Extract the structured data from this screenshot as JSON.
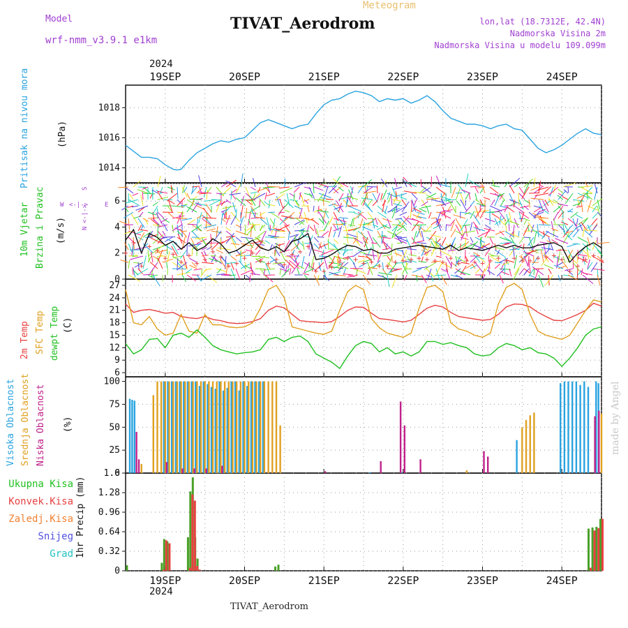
{
  "header": {
    "model_label": "Model",
    "model_name": "wrf-nmm_v3.9.1  e1km",
    "title": "TIVAT_Aerodrom",
    "subtitle": "Meteogram",
    "lonlat": "lon,lat (18.7312E, 42.4N)",
    "elevation": "Nadmorska Visina 2m",
    "model_elevation": "Nadmorska Visina u modelu 109.099m",
    "year": "2024",
    "footer_title": "TIVAT_Aerodrom",
    "credit": "made by Angel"
  },
  "panel_labels": {
    "pressure": [
      "Pritisak na nivou mora",
      "(hPa)"
    ],
    "wind": [
      "10m Vjetar",
      "Brzina i Pravac",
      "(m/s)"
    ],
    "compass": {
      "n": "N",
      "s": "S",
      "w": "W",
      "e": "E",
      "arrow_ns": "<-|->",
      "arrow_we": "<-|->"
    },
    "temp": [
      "2m Temp",
      "SFC Temp",
      "dewpt Temp",
      "(C)"
    ],
    "cloud": [
      "Visoka Oblacnost",
      "Srednja Oblacnost",
      "Niska Oblacnost",
      "(%)"
    ],
    "precip_legend": [
      "Ukupna  Kisa",
      "Konvek.Kisa",
      "Zaledj.Kisa",
      "Snijeg",
      "Grad"
    ],
    "precip_axis": "1hr Precip (mm)"
  },
  "colors": {
    "pressure": "#29a3e0",
    "temp2m": "#e84040",
    "sfc": "#e0a020",
    "dewpt": "#20c020",
    "cloud_high": "#29a3e0",
    "cloud_mid": "#e0a020",
    "cloud_low": "#c0208a",
    "total_rain": "#4aa028",
    "conv_rain": "#e84040",
    "frozen": "#f08030",
    "snow": "#5050e0",
    "hail": "#20c0c0",
    "purple_text": "#a040d0"
  },
  "chart_data": [
    {
      "type": "line",
      "title": "Pritisak na nivou mora",
      "ylabel": "(hPa)",
      "x_categories": [
        "19SEP",
        "20SEP",
        "21SEP",
        "22SEP",
        "23SEP",
        "24SEP"
      ],
      "ylim": [
        1013,
        1019.5
      ],
      "yticks": [
        1014,
        1016,
        1018
      ],
      "grid": true,
      "series": [
        {
          "x": [
            18.5,
            18.6,
            18.7,
            18.8,
            18.9,
            19.0,
            19.1,
            19.15,
            19.2,
            19.3,
            19.4,
            19.5,
            19.6,
            19.7,
            19.8,
            19.9,
            20.0,
            20.1,
            20.2,
            20.3,
            20.4,
            20.5,
            20.6,
            20.7,
            20.8,
            20.9,
            21.0,
            21.1,
            21.2,
            21.3,
            21.4,
            21.5,
            21.6,
            21.7,
            21.8,
            21.9,
            22.0,
            22.1,
            22.2,
            22.3,
            22.4,
            22.5,
            22.6,
            22.7,
            22.8,
            22.9,
            23.0,
            23.1,
            23.2,
            23.3,
            23.4,
            23.5,
            23.6,
            23.7,
            23.8,
            23.9,
            24.0,
            24.1,
            24.2,
            24.3,
            24.4,
            24.5
          ],
          "values": [
            1015.5,
            1015.1,
            1014.7,
            1014.7,
            1014.6,
            1014.2,
            1013.9,
            1013.85,
            1013.9,
            1014.5,
            1015.0,
            1015.3,
            1015.6,
            1015.8,
            1015.7,
            1015.9,
            1016.0,
            1016.5,
            1017.0,
            1017.2,
            1017.0,
            1016.8,
            1016.6,
            1016.8,
            1016.9,
            1017.6,
            1018.2,
            1018.5,
            1018.6,
            1018.9,
            1019.1,
            1019.0,
            1018.8,
            1018.4,
            1018.6,
            1018.5,
            1018.6,
            1018.3,
            1018.5,
            1018.8,
            1018.4,
            1017.8,
            1017.3,
            1017.1,
            1016.9,
            1016.9,
            1016.8,
            1016.6,
            1016.8,
            1016.9,
            1016.6,
            1016.5,
            1015.9,
            1015.3,
            1015.0,
            1015.2,
            1015.5,
            1015.9,
            1016.3,
            1016.6,
            1016.3,
            1016.2
          ]
        }
      ]
    },
    {
      "type": "line",
      "title": "10m Vjetar Brzina i Pravac",
      "ylabel": "(m/s)",
      "ylim": [
        0,
        7.4
      ],
      "yticks": [
        0,
        2,
        4,
        6
      ],
      "grid": true,
      "series": [
        {
          "name": "speed",
          "x": [
            18.5,
            18.6,
            18.7,
            18.8,
            18.9,
            19.0,
            19.1,
            19.2,
            19.3,
            19.4,
            19.5,
            19.6,
            19.7,
            19.8,
            19.9,
            20.0,
            20.1,
            20.2,
            20.3,
            20.4,
            20.5,
            20.6,
            20.7,
            20.8,
            20.9,
            21.0,
            21.1,
            21.2,
            21.3,
            21.4,
            21.5,
            21.6,
            21.7,
            21.8,
            21.9,
            22.0,
            22.1,
            22.2,
            22.3,
            22.4,
            22.5,
            22.6,
            22.7,
            22.8,
            22.9,
            23.0,
            23.1,
            23.2,
            23.3,
            23.4,
            23.5,
            23.6,
            23.7,
            23.8,
            23.9,
            24.0,
            24.1,
            24.2,
            24.3,
            24.4,
            24.5
          ],
          "values": [
            3.0,
            3.8,
            2.0,
            3.5,
            3.2,
            2.6,
            2.9,
            2.3,
            2.8,
            2.2,
            2.5,
            3.1,
            2.7,
            2.0,
            2.2,
            2.6,
            3.0,
            2.4,
            2.2,
            2.5,
            2.1,
            2.9,
            3.1,
            3.5,
            1.5,
            1.6,
            1.9,
            2.3,
            2.6,
            2.5,
            2.2,
            2.3,
            2.0,
            2.0,
            2.3,
            2.4,
            2.5,
            2.6,
            2.5,
            2.4,
            2.3,
            2.6,
            2.2,
            2.4,
            2.3,
            2.2,
            2.4,
            2.6,
            2.4,
            2.6,
            2.4,
            2.4,
            2.6,
            2.7,
            2.8,
            2.5,
            1.3,
            2.0,
            2.5,
            2.8,
            2.4
          ]
        }
      ]
    },
    {
      "type": "line",
      "title": "Temp",
      "ylabel": "(C)",
      "ylim": [
        5,
        28.5
      ],
      "yticks": [
        6,
        9,
        12,
        15,
        18,
        21,
        24,
        27
      ],
      "grid": true,
      "series": [
        {
          "name": "2m Temp",
          "x": [
            18.5,
            18.6,
            18.7,
            18.8,
            18.9,
            19.0,
            19.1,
            19.2,
            19.3,
            19.4,
            19.5,
            19.6,
            19.7,
            19.8,
            19.9,
            20.0,
            20.1,
            20.2,
            20.3,
            20.4,
            20.5,
            20.6,
            20.7,
            20.8,
            20.9,
            21.0,
            21.1,
            21.2,
            21.3,
            21.4,
            21.5,
            21.6,
            21.7,
            21.8,
            21.9,
            22.0,
            22.1,
            22.2,
            22.3,
            22.4,
            22.5,
            22.6,
            22.7,
            22.8,
            22.9,
            23.0,
            23.1,
            23.2,
            23.3,
            23.4,
            23.5,
            23.6,
            23.7,
            23.8,
            23.9,
            24.0,
            24.1,
            24.2,
            24.3,
            24.4,
            24.5
          ],
          "values": [
            22.5,
            20.5,
            21.0,
            21.2,
            20.8,
            20.3,
            20.5,
            19.5,
            19.2,
            19.0,
            19.5,
            18.8,
            18.5,
            18.0,
            17.8,
            17.9,
            18.3,
            19.0,
            21.0,
            22.0,
            21.6,
            20.0,
            18.5,
            18.3,
            18.2,
            18.0,
            18.3,
            19.5,
            21.0,
            21.8,
            21.7,
            20.3,
            19.0,
            18.8,
            18.5,
            18.2,
            18.6,
            20.0,
            21.5,
            22.2,
            21.8,
            20.5,
            19.5,
            19.2,
            18.9,
            18.6,
            18.8,
            20.0,
            21.8,
            22.5,
            22.4,
            21.8,
            20.5,
            19.5,
            18.6,
            18.5,
            19.2,
            20.0,
            21.0,
            22.7,
            22.0
          ]
        },
        {
          "name": "SFC Temp",
          "x": [
            18.5,
            18.6,
            18.7,
            18.8,
            18.9,
            19.0,
            19.1,
            19.2,
            19.3,
            19.4,
            19.5,
            19.6,
            19.7,
            19.8,
            19.9,
            20.0,
            20.1,
            20.2,
            20.3,
            20.4,
            20.5,
            20.6,
            20.7,
            20.8,
            20.9,
            21.0,
            21.1,
            21.2,
            21.3,
            21.4,
            21.5,
            21.6,
            21.7,
            21.8,
            21.9,
            22.0,
            22.1,
            22.2,
            22.3,
            22.4,
            22.5,
            22.6,
            22.7,
            22.8,
            22.9,
            23.0,
            23.1,
            23.2,
            23.3,
            23.4,
            23.5,
            23.6,
            23.7,
            23.8,
            23.9,
            24.0,
            24.1,
            24.2,
            24.3,
            24.4,
            24.5
          ],
          "values": [
            26.0,
            18.0,
            17.5,
            19.5,
            16.5,
            15.0,
            15.5,
            20.0,
            16.0,
            15.5,
            20.0,
            17.5,
            17.5,
            17.0,
            16.8,
            17.0,
            18.0,
            21.5,
            26.0,
            27.0,
            24.0,
            17.0,
            16.5,
            16.0,
            15.5,
            15.2,
            16.0,
            21.0,
            25.5,
            27.0,
            26.0,
            19.0,
            16.8,
            15.5,
            15.0,
            14.5,
            15.5,
            21.5,
            26.5,
            27.0,
            25.5,
            18.0,
            16.5,
            16.0,
            15.0,
            14.5,
            15.5,
            22.5,
            26.5,
            27.5,
            26.0,
            20.0,
            16.0,
            15.0,
            14.5,
            14.0,
            15.0,
            18.0,
            21.0,
            23.5,
            23.0
          ]
        },
        {
          "name": "dewpt Temp",
          "x": [
            18.5,
            18.6,
            18.7,
            18.8,
            18.9,
            19.0,
            19.1,
            19.2,
            19.3,
            19.4,
            19.5,
            19.6,
            19.7,
            19.8,
            19.9,
            20.0,
            20.1,
            20.2,
            20.3,
            20.4,
            20.5,
            20.6,
            20.7,
            20.8,
            20.9,
            21.0,
            21.1,
            21.2,
            21.3,
            21.4,
            21.5,
            21.6,
            21.7,
            21.8,
            21.9,
            22.0,
            22.1,
            22.2,
            22.3,
            22.4,
            22.5,
            22.6,
            22.7,
            22.8,
            22.9,
            23.0,
            23.1,
            23.2,
            23.3,
            23.4,
            23.5,
            23.6,
            23.7,
            23.8,
            23.9,
            24.0,
            24.1,
            24.2,
            24.3,
            24.4,
            24.5
          ],
          "values": [
            13.0,
            10.5,
            11.5,
            14.0,
            14.2,
            12.0,
            15.0,
            15.5,
            14.5,
            16.3,
            14.5,
            12.5,
            11.5,
            11.0,
            10.5,
            10.8,
            11.0,
            11.5,
            14.0,
            14.5,
            13.5,
            14.5,
            14.8,
            13.5,
            10.5,
            9.5,
            8.5,
            7.0,
            10.0,
            12.5,
            13.5,
            13.0,
            11.0,
            12.0,
            10.5,
            11.0,
            10.0,
            11.0,
            13.5,
            13.5,
            12.8,
            13.2,
            12.5,
            12.0,
            10.5,
            10.0,
            10.3,
            12.0,
            13.0,
            12.5,
            11.5,
            12.0,
            10.8,
            10.5,
            9.5,
            7.5,
            9.5,
            12.0,
            15.0,
            16.5,
            17.0
          ]
        }
      ]
    },
    {
      "type": "bar",
      "title": "Oblacnost",
      "ylabel": "(%)",
      "ylim": [
        0,
        105
      ],
      "yticks": [
        0,
        25,
        50,
        75,
        100
      ],
      "grid": true,
      "series": [
        {
          "name": "Visoka Oblacnost",
          "x": [
            18.57,
            18.6,
            18.63,
            19.0,
            19.05,
            19.1,
            19.15,
            19.2,
            19.25,
            19.3,
            19.35,
            19.4,
            19.45,
            19.5,
            19.55,
            19.6,
            19.65,
            19.7,
            19.75,
            19.8,
            19.85,
            19.9,
            19.95,
            20.0,
            20.05,
            20.1,
            20.15,
            20.2,
            20.25,
            21.6,
            22.0,
            23.45,
            23.5,
            24.0,
            24.05,
            24.1,
            24.15,
            24.2,
            24.25,
            24.3,
            24.35,
            24.45,
            24.48
          ],
          "values": [
            81,
            80,
            79,
            100,
            100,
            100,
            100,
            100,
            100,
            100,
            100,
            100,
            95,
            100,
            97,
            94,
            92,
            100,
            90,
            93,
            100,
            100,
            90,
            100,
            95,
            100,
            100,
            100,
            100,
            1,
            1,
            36,
            0,
            98,
            100,
            100,
            100,
            100,
            96,
            100,
            94,
            100,
            98
          ]
        },
        {
          "name": "Srednja Oblacnost",
          "x": [
            18.7,
            18.85,
            18.9,
            18.95,
            19.0,
            19.05,
            19.1,
            19.15,
            19.2,
            19.25,
            19.3,
            19.35,
            19.4,
            19.45,
            19.5,
            19.55,
            19.6,
            19.65,
            19.7,
            19.75,
            19.8,
            19.85,
            19.9,
            19.95,
            20.0,
            20.05,
            20.1,
            20.15,
            20.2,
            20.25,
            20.3,
            20.35,
            20.4,
            20.45,
            22.8,
            23.5,
            23.55,
            23.6,
            23.65,
            24.5
          ],
          "values": [
            10,
            85,
            100,
            100,
            100,
            100,
            100,
            100,
            100,
            100,
            100,
            100,
            100,
            100,
            100,
            100,
            100,
            100,
            100,
            100,
            100,
            100,
            100,
            100,
            100,
            100,
            100,
            100,
            100,
            100,
            100,
            100,
            100,
            52,
            3,
            50,
            58,
            63,
            66,
            65
          ]
        },
        {
          "name": "Niska Oblacnost",
          "x": [
            18.62,
            18.65,
            19.0,
            19.2,
            19.35,
            19.5,
            19.7,
            21.0,
            21.7,
            21.95,
            22.0,
            22.2,
            23.0,
            23.05,
            24.4,
            24.45
          ],
          "values": [
            45,
            15,
            12,
            5,
            5,
            5,
            8,
            2,
            13,
            78,
            52,
            15,
            24,
            18,
            62,
            68
          ]
        }
      ]
    },
    {
      "type": "bar",
      "title": "1hr Precip",
      "ylabel": "1hr Precip (mm)",
      "ylim": [
        0,
        1.6
      ],
      "yticks": [
        0,
        0.32,
        0.64,
        0.96,
        1.28,
        1.6
      ],
      "grid": true,
      "series": [
        {
          "name": "Ukupna Kisa",
          "x": [
            18.53,
            18.97,
            19.0,
            19.04,
            19.3,
            19.33,
            19.36,
            19.39,
            19.42,
            19.45,
            20.4,
            20.44,
            24.35,
            24.4,
            24.45,
            24.5
          ],
          "values": [
            0.09,
            0.13,
            0.52,
            0.48,
            0.55,
            1.3,
            1.53,
            0.55,
            0.2,
            0.0,
            0.07,
            0.1,
            0.69,
            0.71,
            0.72,
            0.85
          ]
        },
        {
          "name": "Konvek.Kisa",
          "x": [
            18.97,
            19.0,
            19.04,
            19.3,
            19.33,
            19.36,
            19.39,
            19.42,
            24.35,
            24.4,
            24.45,
            24.5
          ],
          "values": [
            0.02,
            0.5,
            0.45,
            0.05,
            1.25,
            1.15,
            0.08,
            0.02,
            0.05,
            0.66,
            0.7,
            0.85
          ]
        }
      ]
    }
  ]
}
